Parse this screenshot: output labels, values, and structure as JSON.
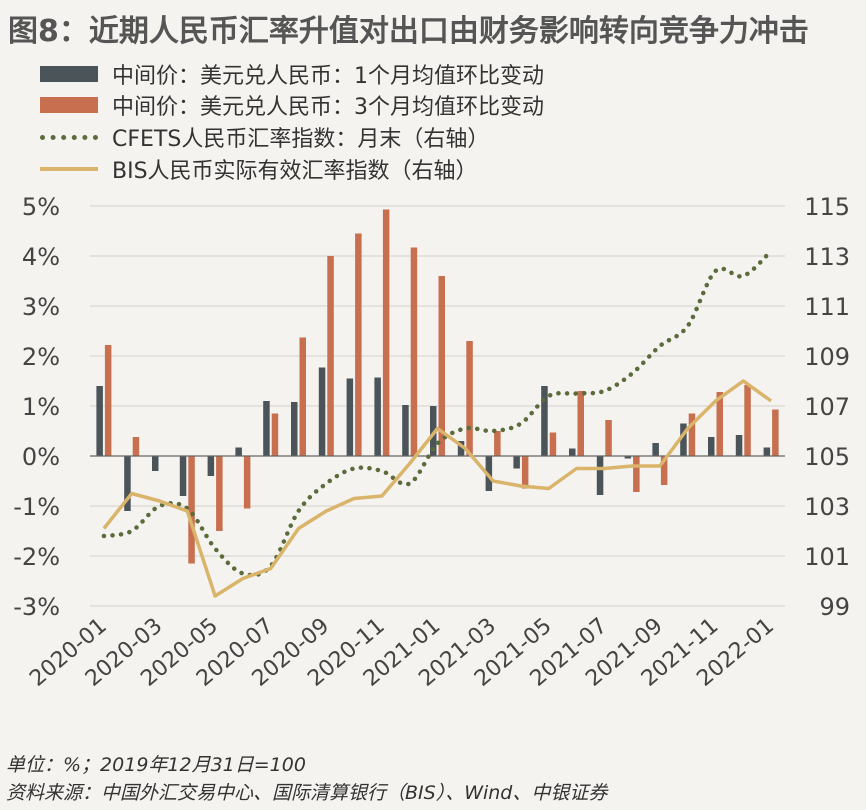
{
  "title": "图8：近期人民币汇率升值对出口由财务影响转向竞争力冲击",
  "legend": [
    {
      "label": "中间价：美元兑人民币：1个月均值环比变动",
      "kind": "bar",
      "color": "#4a5459"
    },
    {
      "label": "中间价：美元兑人民币：3个月均值环比变动",
      "kind": "bar",
      "color": "#c76f4e"
    },
    {
      "label": "CFETS人民币汇率指数：月末（右轴）",
      "kind": "dotted",
      "color": "#5b6b3c"
    },
    {
      "label": "BIS人民币实际有效汇率指数（右轴）",
      "kind": "line",
      "color": "#d9b46a"
    }
  ],
  "chart_data": {
    "type": "bar+line",
    "categories": [
      "2020-01",
      "2020-02",
      "2020-03",
      "2020-04",
      "2020-05",
      "2020-06",
      "2020-07",
      "2020-08",
      "2020-09",
      "2020-10",
      "2020-11",
      "2020-12",
      "2021-01",
      "2021-02",
      "2021-03",
      "2021-04",
      "2021-05",
      "2021-06",
      "2021-07",
      "2021-08",
      "2021-09",
      "2021-10",
      "2021-11",
      "2021-12",
      "2022-01"
    ],
    "x_tick_labels": [
      "2020-01",
      "2020-03",
      "2020-05",
      "2020-07",
      "2020-09",
      "2020-11",
      "2021-01",
      "2021-03",
      "2021-05",
      "2021-07",
      "2021-09",
      "2021-11",
      "2022-01"
    ],
    "left_axis": {
      "ticks": [
        "5%",
        "4%",
        "3%",
        "2%",
        "1%",
        "0%",
        "-1%",
        "-2%",
        "-3%"
      ],
      "range": [
        -3,
        5
      ]
    },
    "right_axis": {
      "ticks": [
        "115",
        "113",
        "111",
        "109",
        "107",
        "105",
        "103",
        "101",
        "99"
      ],
      "range": [
        99,
        115
      ]
    },
    "series": [
      {
        "name": "中间价：美元兑人民币：1个月均值环比变动",
        "type": "bar",
        "axis": "left",
        "color": "#4a5459",
        "values": [
          1.4,
          -1.1,
          -0.3,
          -0.8,
          -0.4,
          0.17,
          1.1,
          1.08,
          1.77,
          1.55,
          1.57,
          1.02,
          1.0,
          0.3,
          -0.7,
          -0.25,
          1.4,
          0.15,
          -0.78,
          -0.05,
          0.26,
          0.65,
          0.38,
          0.42,
          0.17
        ]
      },
      {
        "name": "中间价：美元兑人民币：3个月均值环比变动",
        "type": "bar",
        "axis": "left",
        "color": "#c76f4e",
        "values": [
          2.22,
          0.38,
          0.0,
          -2.15,
          -1.5,
          -1.05,
          0.85,
          2.37,
          4.0,
          4.45,
          4.93,
          4.17,
          3.6,
          2.3,
          0.5,
          -0.65,
          0.47,
          1.3,
          0.72,
          -0.72,
          -0.58,
          0.85,
          1.28,
          1.42,
          0.93
        ]
      },
      {
        "name": "CFETS人民币汇率指数：月末（右轴）",
        "type": "line",
        "style": "dotted",
        "axis": "right",
        "color": "#5b6b3c",
        "values": [
          101.8,
          102.0,
          103.0,
          102.9,
          101.3,
          100.3,
          100.6,
          102.8,
          103.9,
          104.5,
          104.4,
          103.9,
          105.5,
          106.1,
          106.0,
          106.3,
          107.4,
          107.5,
          107.6,
          108.3,
          109.4,
          110.2,
          112.4,
          112.2,
          113.2
        ]
      },
      {
        "name": "BIS人民币实际有效汇率指数（右轴）",
        "type": "line",
        "style": "solid",
        "axis": "right",
        "color": "#d9b46a",
        "values": [
          102.1,
          103.5,
          103.2,
          102.8,
          99.4,
          100.1,
          100.5,
          102.1,
          102.8,
          103.3,
          103.4,
          104.7,
          106.1,
          105.3,
          104.0,
          103.8,
          103.7,
          104.5,
          104.5,
          104.6,
          104.6,
          106.1,
          107.2,
          108.0,
          107.2
        ]
      }
    ]
  },
  "footer": {
    "unit": "单位：%；2019年12月31日=100",
    "source": "资料来源：中国外汇交易中心、国际清算银行（BIS）、Wind、中银证券"
  }
}
